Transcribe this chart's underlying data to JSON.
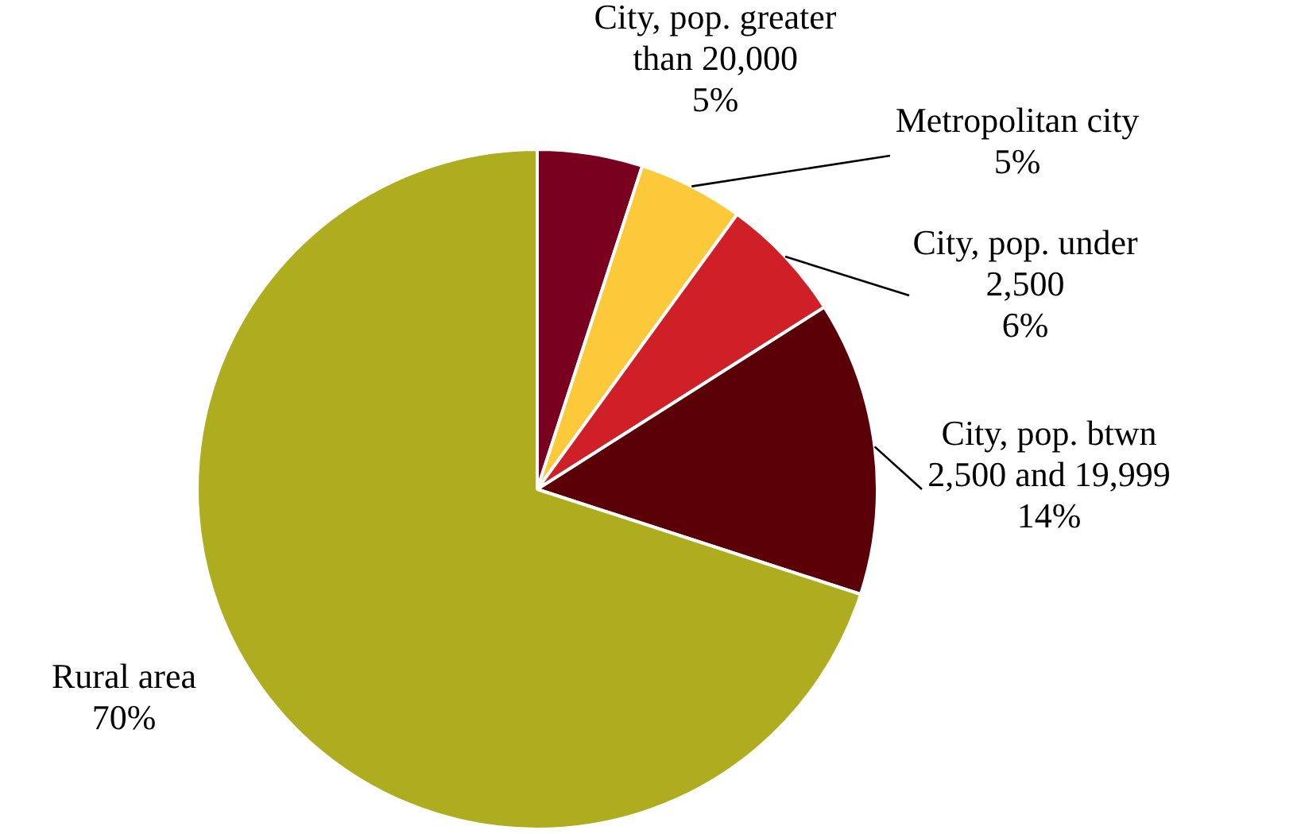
{
  "chart_data": {
    "type": "pie",
    "categories": [
      "City, pop. greater than 20,000",
      "Metropolitan city",
      "City, pop. under 2,500",
      "City, pop. btwn 2,500 and 19,999",
      "Rural area"
    ],
    "values": [
      5,
      5,
      6,
      14,
      70
    ],
    "value_labels": [
      "5%",
      "5%",
      "6%",
      "14%",
      "70%"
    ],
    "colors": [
      "#7a0020",
      "#fcc93a",
      "#d02027",
      "#5c0007",
      "#adad1f"
    ]
  }
}
